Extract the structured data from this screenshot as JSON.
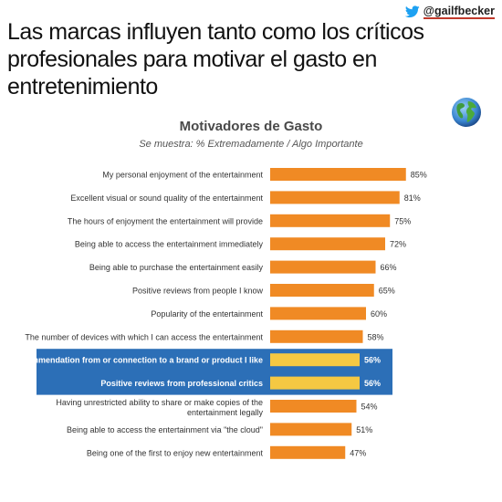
{
  "headline": "Las marcas influyen tanto como los críticos profesionales para motivar el gasto en entretenimiento",
  "twitter": {
    "handle": "@gailfbecker",
    "icon": "twitter-bird-icon"
  },
  "globe_icon": "globe-icon",
  "colors": {
    "bar": "#f08a24",
    "highlight_bar": "#f5c842",
    "highlight_band": "#2c6fb7",
    "label": "#333333"
  },
  "chart_data": {
    "type": "bar",
    "orientation": "horizontal",
    "title": "Motivadores de Gasto",
    "subtitle": "Se muestra: % Extremadamente / Algo Importante",
    "xlim": [
      0,
      100
    ],
    "categories": [
      "My personal enjoyment of the entertainment",
      "Excellent visual or sound quality of the entertainment",
      "The hours of enjoyment the entertainment will provide",
      "Being able to access the entertainment immediately",
      "Being able to purchase the entertainment easily",
      "Positive reviews from people I know",
      "Popularity of the entertainment",
      "The number of devices with which I can access the entertainment",
      "Recommendation from or connection to a brand or product I like",
      "Positive reviews from professional critics",
      "Having unrestricted ability to share or make copies of the entertainment legally",
      "Being able to access the entertainment via \"the cloud\"",
      "Being one of the first to enjoy new entertainment"
    ],
    "values": [
      85,
      81,
      75,
      72,
      66,
      65,
      60,
      58,
      56,
      56,
      54,
      51,
      47
    ],
    "value_labels": [
      "85%",
      "81%",
      "75%",
      "72%",
      "66%",
      "65%",
      "60%",
      "58%",
      "56%",
      "56%",
      "54%",
      "51%",
      "47%"
    ],
    "highlighted": [
      false,
      false,
      false,
      false,
      false,
      false,
      false,
      false,
      true,
      true,
      false,
      false,
      false
    ]
  }
}
